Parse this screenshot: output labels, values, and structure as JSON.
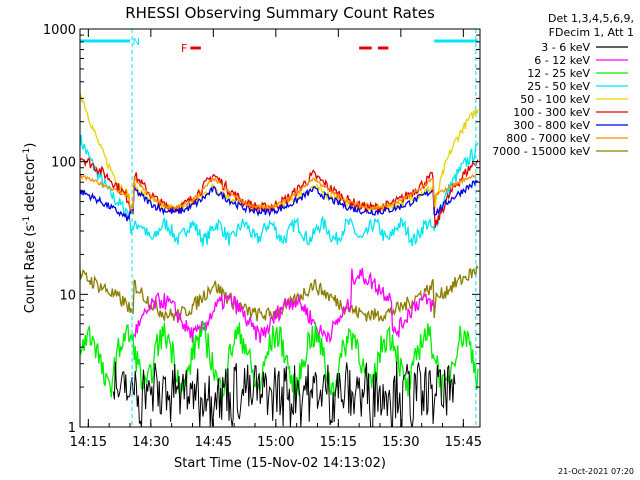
{
  "chart_data": {
    "type": "line",
    "title": "RHESSI Observing Summary Count Rates",
    "xlabel": "Start Time (15-Nov-02 14:13:02)",
    "ylabel_main": "Count Rate (s",
    "ylabel_sup1": "-1",
    "ylabel_mid": " detector",
    "ylabel_sup2": "-1",
    "ylabel_end": ")",
    "yscale": "log",
    "ylim": [
      1,
      1000
    ],
    "xlim_minutes": [
      0,
      96
    ],
    "x_ticks": [
      {
        "label": "14:15",
        "t": 2
      },
      {
        "label": "14:30",
        "t": 17
      },
      {
        "label": "14:45",
        "t": 32
      },
      {
        "label": "15:00",
        "t": 47
      },
      {
        "label": "15:15",
        "t": 62
      },
      {
        "label": "15:30",
        "t": 77
      },
      {
        "label": "15:45",
        "t": 92
      }
    ],
    "y_ticks": [
      {
        "label": "1",
        "v": 1
      },
      {
        "label": "10",
        "v": 10
      },
      {
        "label": "100",
        "v": 100
      },
      {
        "label": "1000",
        "v": 1000
      }
    ],
    "legend_header": [
      "Det 1,3,4,5,6,9,",
      "FDecim 1, Att 1"
    ],
    "footer_date": "21-Oct-2021 07:20",
    "flags": [
      {
        "label": "N",
        "color": "#00e5ff",
        "t": 13.5
      },
      {
        "label": "F",
        "color": "#e00000",
        "t": 25
      }
    ],
    "series": [
      {
        "name": "3 - 6 keV",
        "color": "#000000"
      },
      {
        "name": "6 - 12 keV",
        "color": "#ff00ff"
      },
      {
        "name": "12 - 25 keV",
        "color": "#00ee00"
      },
      {
        "name": "25 - 50 keV",
        "color": "#00e5ee"
      },
      {
        "name": "50 - 100 keV",
        "color": "#e5d400"
      },
      {
        "name": "100 - 300 keV",
        "color": "#e00000"
      },
      {
        "name": "300 - 800 keV",
        "color": "#0000ee"
      },
      {
        "name": "800 - 7000 keV",
        "color": "#ff8c00"
      },
      {
        "name": "7000 - 15000 keV",
        "color": "#8b7d00"
      }
    ]
  }
}
